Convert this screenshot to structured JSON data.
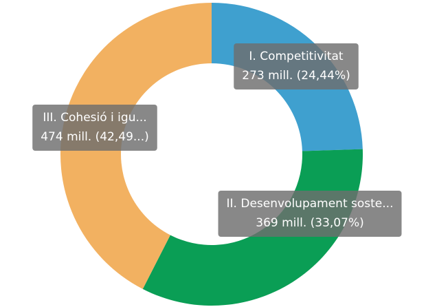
{
  "chart_data": {
    "type": "donut",
    "categories": [
      "I. Competitivitat",
      "II. Desenvolupament soste...",
      "III. Cohesió i igu..."
    ],
    "values": [
      273,
      369,
      474
    ],
    "value_labels": [
      "273 mill. (24,44%)",
      "369 mill. (33,07%)",
      "474 mill. (42,49...)"
    ],
    "colors": [
      "#3fa0cf",
      "#0a9e55",
      "#f2b161"
    ]
  }
}
